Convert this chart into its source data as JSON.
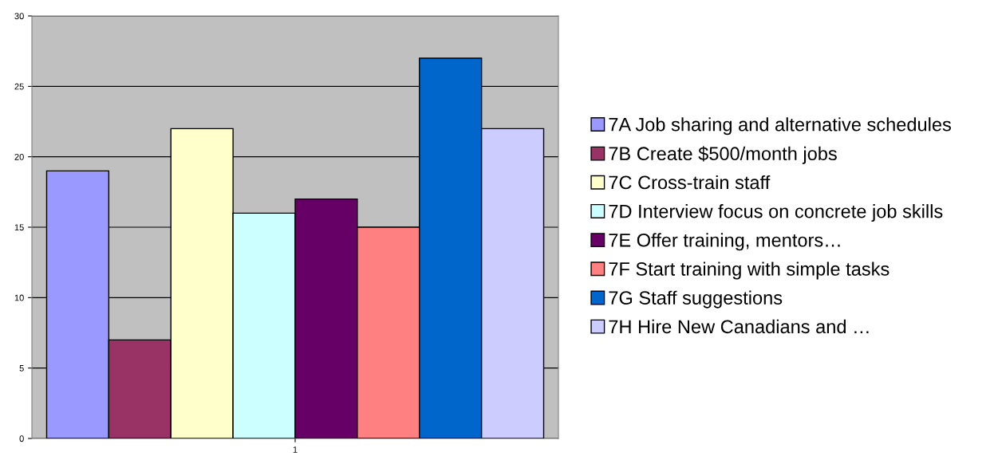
{
  "chart_data": {
    "type": "bar",
    "categories": [
      "1"
    ],
    "series": [
      {
        "name": "7A Job sharing and alternative schedules",
        "color": "#9999ff",
        "values": [
          19
        ]
      },
      {
        "name": "7B Create $500/month jobs",
        "color": "#993366",
        "values": [
          7
        ]
      },
      {
        "name": "7C Cross-train staff",
        "color": "#ffffcc",
        "values": [
          22
        ]
      },
      {
        "name": "7D Interview focus on concrete job skills",
        "color": "#ccffff",
        "values": [
          16
        ]
      },
      {
        "name": "7E Offer training, mentors…",
        "color": "#660066",
        "values": [
          17
        ]
      },
      {
        "name": "7F Start training with simple tasks",
        "color": "#ff8080",
        "values": [
          15
        ]
      },
      {
        "name": "7G Staff suggestions",
        "color": "#0066cc",
        "values": [
          27
        ]
      },
      {
        "name": "7H Hire New Canadians and …",
        "color": "#ccccff",
        "values": [
          22
        ]
      }
    ],
    "ylim": [
      0,
      30
    ],
    "yticks": [
      0,
      5,
      10,
      15,
      20,
      25,
      30
    ],
    "grid": "y",
    "legend": "right"
  }
}
